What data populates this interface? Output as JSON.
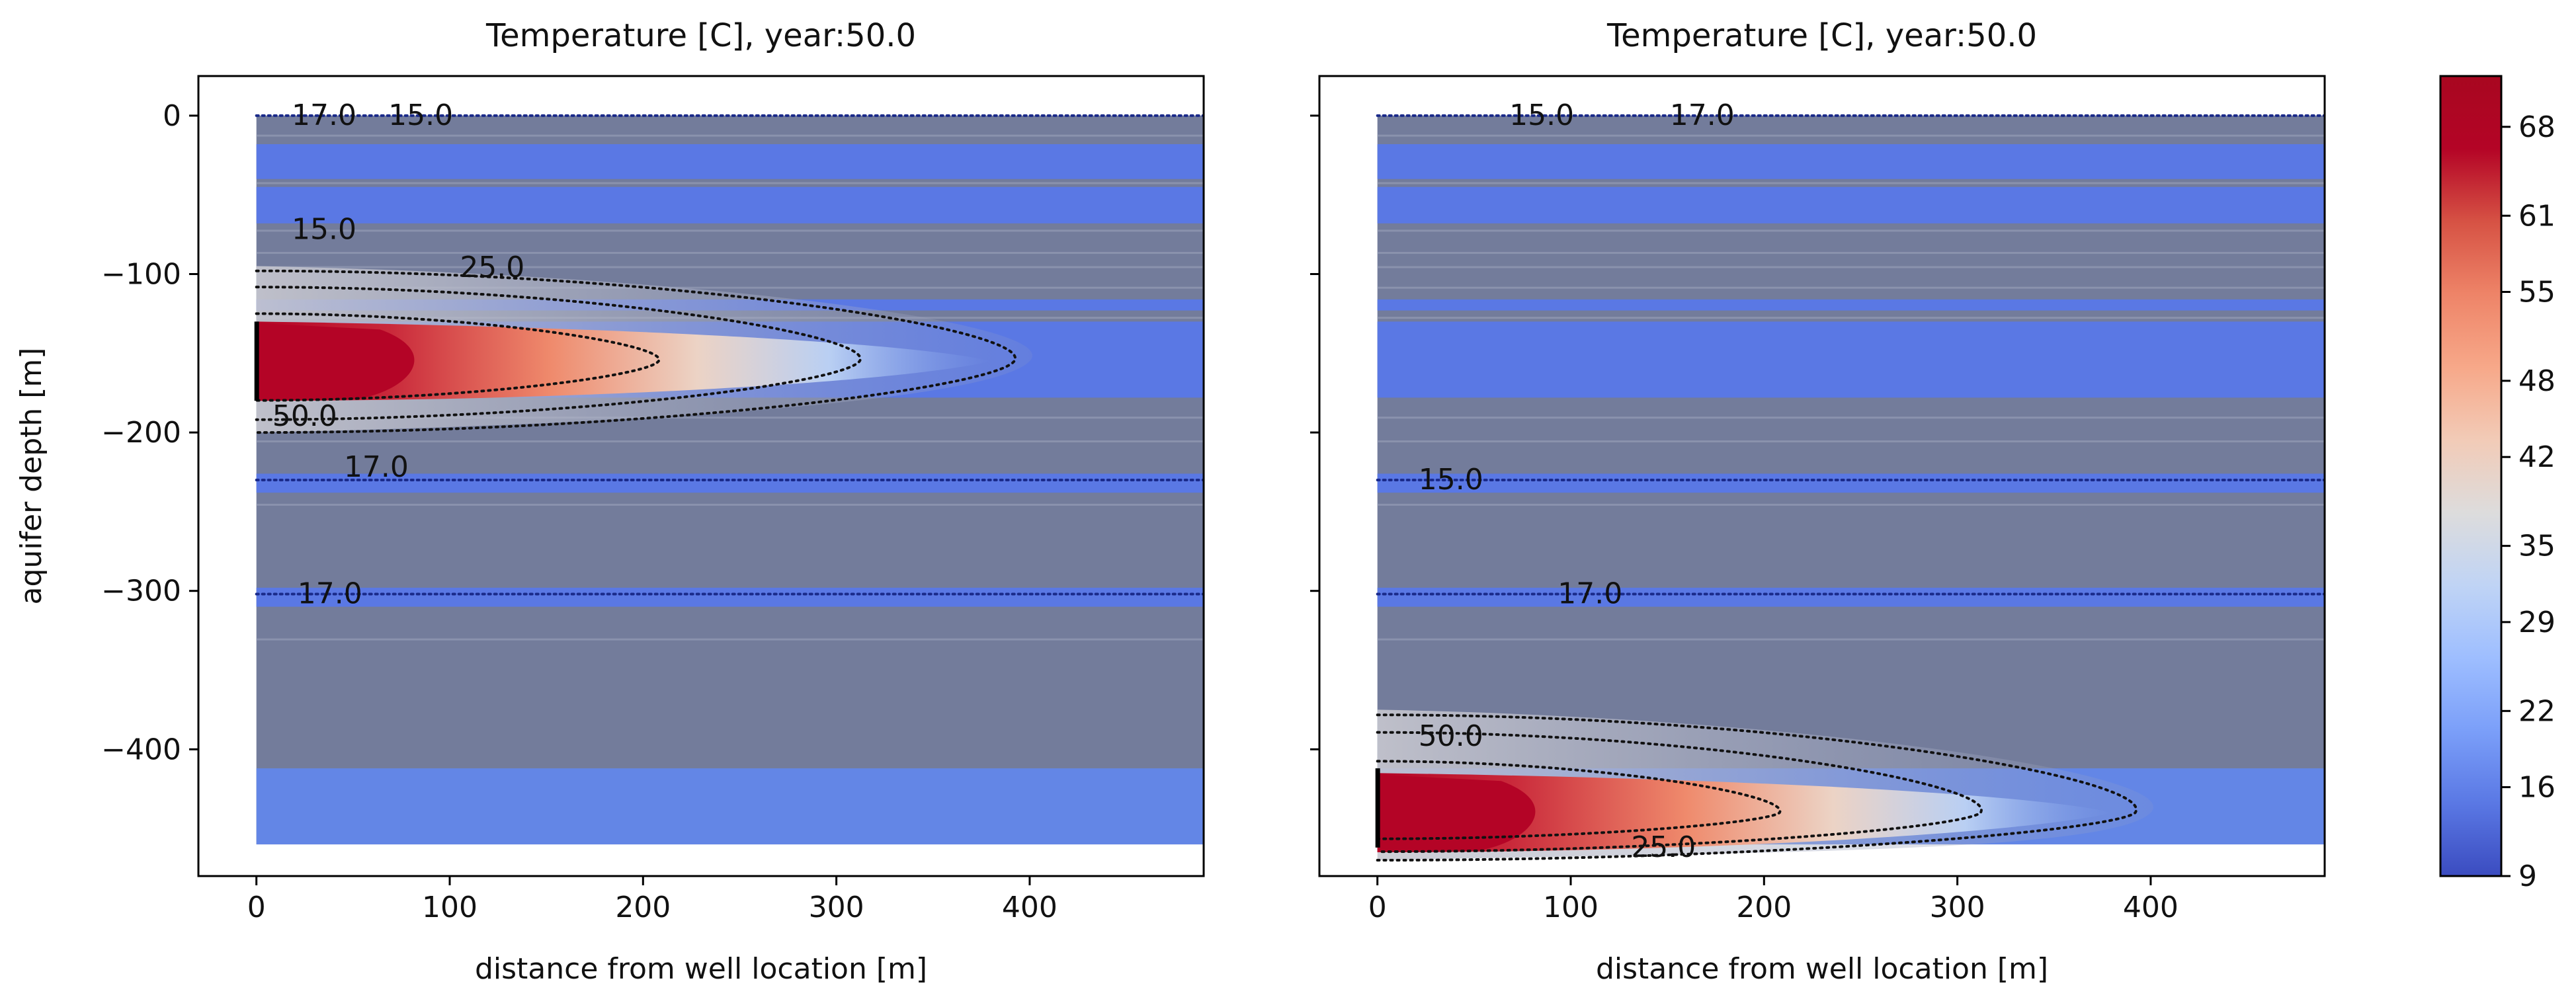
{
  "figure": {
    "ylabel": "aquifer depth [m]"
  },
  "colors": {
    "gray_layer": "#737c9b",
    "plot_bg": "#737c9b",
    "blue_layer": "#3f5ecf",
    "light_blue_layer": "#6386e6",
    "axis": "#000000",
    "colorbar": [
      "#3b4cc0",
      "#5a78e4",
      "#7b9ff9",
      "#9ebeff",
      "#c0d4f5",
      "#dddcdc",
      "#f2cbb7",
      "#f7a889",
      "#ee8468",
      "#d65244",
      "#b40426",
      "#a80720"
    ]
  },
  "chart_data": [
    {
      "type": "contour",
      "title": "Temperature [C], year:50.0",
      "xlabel": "distance from well location [m]",
      "ylabel": "aquifer depth [m]",
      "xlim": [
        -30,
        490
      ],
      "ylim": [
        -480,
        25
      ],
      "xticks": [
        0,
        100,
        200,
        300,
        400
      ],
      "xtick_labels": [
        "0",
        "100",
        "200",
        "300",
        "400"
      ],
      "yticks": [
        0,
        -100,
        -200,
        -300,
        -400
      ],
      "ytick_labels": [
        "0",
        "−100",
        "−200",
        "−300",
        "−400"
      ],
      "domain_x": [
        0,
        490
      ],
      "domain_y": [
        -460,
        0
      ],
      "background_temperature_C": 15,
      "aquifer_layers": [
        {
          "top": -18,
          "bottom": -40,
          "temperature": 12
        },
        {
          "top": -45,
          "bottom": -68,
          "temperature": 12
        },
        {
          "top": -116,
          "bottom": -123,
          "temperature": 13
        },
        {
          "top": -130,
          "bottom": -178,
          "temperature": 13
        },
        {
          "top": -226,
          "bottom": -238,
          "temperature": 16
        },
        {
          "top": -298,
          "bottom": -310,
          "temperature": 17
        }
      ],
      "injection_well": {
        "x": 0,
        "top": -130,
        "bottom": -180,
        "temperature": 70
      },
      "thermal_plume": {
        "depth_center": -155,
        "depth_extent": [
          -95,
          -200
        ],
        "max_radius_m": 400
      },
      "contour_levels": [
        15.0,
        17.0,
        25.0,
        50.0
      ],
      "contour_labels": [
        {
          "text": "17.0",
          "x": 35,
          "y": 0
        },
        {
          "text": "15.0",
          "x": 85,
          "y": 0
        },
        {
          "text": "15.0",
          "x": 35,
          "y": -72
        },
        {
          "text": "25.0",
          "x": 122,
          "y": -96
        },
        {
          "text": "50.0",
          "x": 25,
          "y": -190
        },
        {
          "text": "17.0",
          "x": 62,
          "y": -222
        },
        {
          "text": "17.0",
          "x": 38,
          "y": -302
        }
      ]
    },
    {
      "type": "contour",
      "title": "Temperature [C], year:50.0",
      "xlabel": "distance from well location [m]",
      "ylabel": "",
      "xlim": [
        -30,
        490
      ],
      "ylim": [
        -480,
        25
      ],
      "xticks": [
        0,
        100,
        200,
        300,
        400
      ],
      "xtick_labels": [
        "0",
        "100",
        "200",
        "300",
        "400"
      ],
      "yticks": [
        0,
        -100,
        -200,
        -300,
        -400
      ],
      "ytick_labels": [],
      "domain_x": [
        0,
        490
      ],
      "domain_y": [
        -460,
        0
      ],
      "background_temperature_C": 15,
      "aquifer_layers": [
        {
          "top": -18,
          "bottom": -40,
          "temperature": 12
        },
        {
          "top": -45,
          "bottom": -68,
          "temperature": 12
        },
        {
          "top": -116,
          "bottom": -123,
          "temperature": 13
        },
        {
          "top": -130,
          "bottom": -178,
          "temperature": 13
        },
        {
          "top": -226,
          "bottom": -238,
          "temperature": 16
        },
        {
          "top": -298,
          "bottom": -310,
          "temperature": 17
        }
      ],
      "injection_well": {
        "x": 0,
        "top": -412,
        "bottom": -462,
        "temperature": 70
      },
      "thermal_plume": {
        "depth_center": -440,
        "depth_extent": [
          -375,
          -470
        ],
        "max_radius_m": 400
      },
      "contour_levels": [
        15.0,
        17.0,
        25.0,
        50.0
      ],
      "contour_labels": [
        {
          "text": "15.0",
          "x": 85,
          "y": 0
        },
        {
          "text": "17.0",
          "x": 168,
          "y": 0
        },
        {
          "text": "15.0",
          "x": 38,
          "y": -230
        },
        {
          "text": "17.0",
          "x": 110,
          "y": -302
        },
        {
          "text": "50.0",
          "x": 38,
          "y": -392
        },
        {
          "text": "25.0",
          "x": 148,
          "y": -462
        }
      ]
    }
  ],
  "colorbar": {
    "min": 9,
    "max": 72,
    "ticks": [
      9,
      16,
      22,
      29,
      35,
      42,
      48,
      55,
      61,
      68
    ],
    "tick_labels": [
      "9",
      "16",
      "22",
      "29",
      "35",
      "42",
      "48",
      "55",
      "61",
      "68"
    ]
  }
}
